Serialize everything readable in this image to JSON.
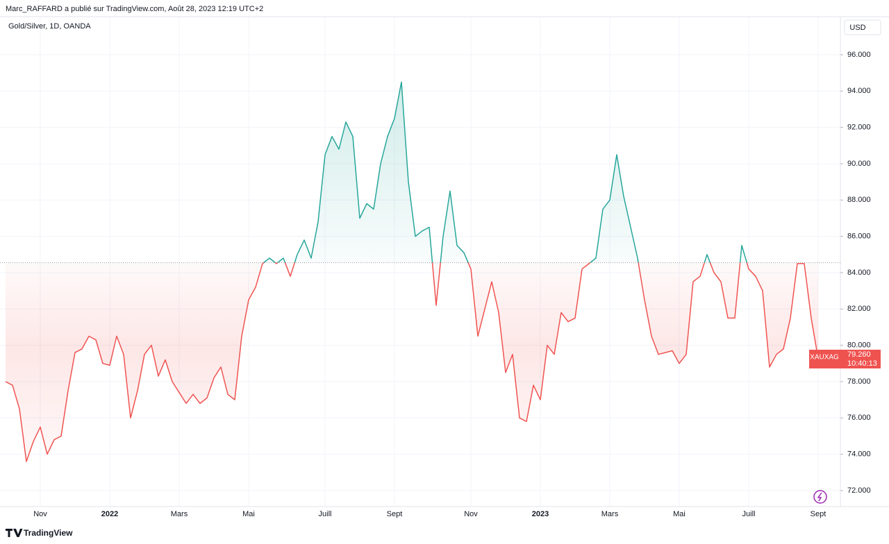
{
  "header": "Marc_RAFFARD a publié sur TradingView.com, Août 28, 2023 12:19 UTC+2",
  "currency": "USD",
  "brand": "TradingView",
  "chart_data": {
    "type": "baseline",
    "title": "Gold/Silver, 1D, OANDA",
    "baseline": 84.55,
    "color_above": "#26a69a",
    "color_below": "#ef5350",
    "grid": true,
    "ylim": [
      71.12,
      98.1
    ],
    "yticks": [
      {
        "value": 72,
        "label": "72.000"
      },
      {
        "value": 74,
        "label": "74.000"
      },
      {
        "value": 76,
        "label": "76.000"
      },
      {
        "value": 78,
        "label": "78.000"
      },
      {
        "value": 80,
        "label": "80.000"
      },
      {
        "value": 82,
        "label": "82.000"
      },
      {
        "value": 84,
        "label": "84.000"
      },
      {
        "value": 86,
        "label": "86.000"
      },
      {
        "value": 88,
        "label": "88.000"
      },
      {
        "value": 90,
        "label": "90.000"
      },
      {
        "value": 92,
        "label": "92.000"
      },
      {
        "value": 94,
        "label": "94.000"
      },
      {
        "value": 96,
        "label": "96.000"
      }
    ],
    "categories": [
      null,
      null,
      null,
      null,
      null,
      "Nov",
      null,
      null,
      null,
      null,
      null,
      null,
      null,
      null,
      null,
      "2022",
      null,
      null,
      null,
      null,
      null,
      null,
      null,
      null,
      null,
      "Mars",
      null,
      null,
      null,
      null,
      null,
      null,
      null,
      null,
      null,
      "Mai",
      null,
      null,
      null,
      null,
      null,
      null,
      null,
      null,
      null,
      null,
      "Juill",
      null,
      null,
      null,
      null,
      null,
      null,
      null,
      null,
      null,
      "Sept",
      null,
      null,
      null,
      null,
      null,
      null,
      null,
      null,
      null,
      null,
      "Nov",
      null,
      null,
      null,
      null,
      null,
      null,
      null,
      null,
      null,
      "2023",
      null,
      null,
      null,
      null,
      null,
      null,
      null,
      null,
      null,
      "Mars",
      null,
      null,
      null,
      null,
      null,
      null,
      null,
      null,
      null,
      "Mai",
      null,
      null,
      null,
      null,
      null,
      null,
      null,
      null,
      null,
      "Juill",
      null,
      null,
      null,
      null,
      null,
      null,
      null,
      null,
      null,
      "Sept"
    ],
    "values": [
      78.0,
      77.8,
      76.5,
      73.6,
      74.7,
      75.5,
      74.0,
      74.8,
      75.0,
      77.5,
      79.6,
      79.8,
      80.5,
      80.3,
      79.0,
      78.9,
      80.5,
      79.5,
      76.0,
      77.5,
      79.5,
      80.0,
      78.3,
      79.2,
      78.0,
      77.4,
      76.8,
      77.3,
      76.8,
      77.1,
      78.2,
      78.8,
      77.3,
      77.0,
      80.5,
      82.5,
      83.2,
      84.5,
      84.8,
      84.5,
      84.8,
      83.8,
      85.0,
      85.8,
      84.8,
      86.8,
      90.5,
      91.5,
      90.8,
      92.3,
      91.5,
      87.0,
      87.8,
      87.5,
      90.0,
      91.5,
      92.5,
      94.5,
      89.0,
      86.0,
      86.3,
      86.5,
      82.2,
      86.0,
      88.5,
      85.5,
      85.1,
      84.2,
      80.5,
      82.0,
      83.5,
      81.8,
      78.5,
      79.5,
      76.0,
      75.8,
      77.8,
      77.0,
      80.0,
      79.5,
      81.8,
      81.3,
      81.5,
      84.2,
      84.5,
      84.8,
      87.5,
      88.0,
      90.5,
      88.2,
      86.5,
      84.8,
      82.5,
      80.5,
      79.5,
      79.6,
      79.7,
      79.0,
      79.5,
      83.5,
      83.8,
      85.0,
      84.0,
      83.5,
      81.5,
      81.5,
      85.5,
      84.2,
      83.8,
      83.0,
      78.8,
      79.5,
      79.8,
      81.5,
      84.5,
      84.5,
      81.5,
      79.26
    ],
    "last_label": {
      "symbol": "XAUXAG",
      "price": "79.260",
      "countdown": "10:40:13"
    }
  }
}
